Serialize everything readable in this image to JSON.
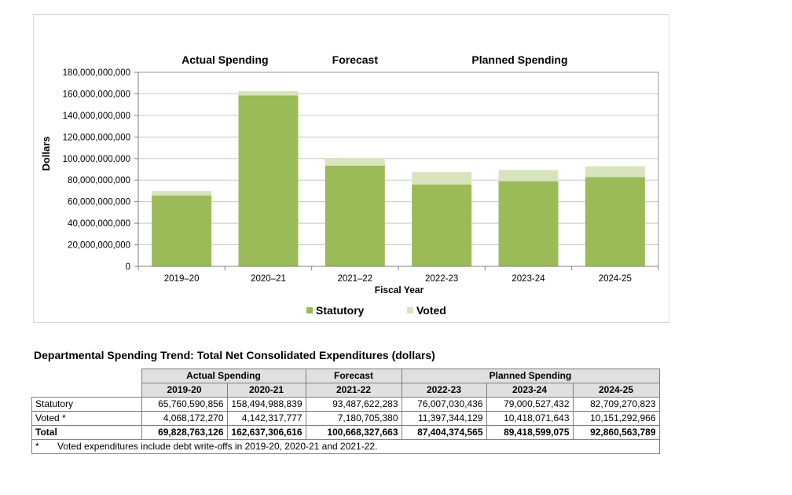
{
  "chart_data": {
    "type": "bar",
    "stacked": true,
    "categories": [
      "2019–20",
      "2020–21",
      "2021–22",
      "2022-23",
      "2023-24",
      "2024-25"
    ],
    "series": [
      {
        "name": "Statutory",
        "color": "#9bbb59",
        "values": [
          65760590856,
          158494988839,
          93487622283,
          76007030436,
          79000527432,
          82709270823
        ]
      },
      {
        "name": "Voted",
        "color": "#d7e4bd",
        "values": [
          4068172270,
          4142317777,
          7180705380,
          11397344129,
          10418071643,
          10151292966
        ]
      }
    ],
    "ylabel": "Dollars",
    "xlabel": "Fiscal Year",
    "ylim": [
      0,
      180000000000
    ],
    "yticks": [
      0,
      20000000000,
      40000000000,
      60000000000,
      80000000000,
      100000000000,
      120000000000,
      140000000000,
      160000000000,
      180000000000
    ],
    "ytick_labels": [
      "0",
      "20,000,000,000",
      "40,000,000,000",
      "60,000,000,000",
      "80,000,000,000",
      "100,000,000,000",
      "120,000,000,000",
      "140,000,000,000",
      "160,000,000,000",
      "180,000,000,000"
    ],
    "group_labels": [
      "Actual  Spending",
      "Forecast",
      "Planned Spending"
    ],
    "grid": true,
    "legend": "bottom-center"
  },
  "table": {
    "title": "Departmental Spending Trend: Total Net Consolidated Expenditures (dollars)",
    "groups": [
      "Actual Spending",
      "Forecast",
      "Planned Spending"
    ],
    "years": [
      "2019-20",
      "2020-21",
      "2021-22",
      "2022-23",
      "2023-24",
      "2024-25"
    ],
    "rows": [
      {
        "label": "Statutory",
        "values": [
          "65,760,590,856",
          "158,494,988,839",
          "93,487,622,283",
          "76,007,030,436",
          "79,000,527,432",
          "82,709,270,823"
        ]
      },
      {
        "label": "Voted *",
        "values": [
          "4,068,172,270",
          "4,142,317,777",
          "7,180,705,380",
          "11,397,344,129",
          "10,418,071,643",
          "10,151,292,966"
        ]
      },
      {
        "label": "Total",
        "values": [
          "69,828,763,126",
          "162,637,306,616",
          "100,668,327,663",
          "87,404,374,565",
          "89,418,599,075",
          "92,860,563,789"
        ]
      }
    ],
    "note_marker": "*",
    "note": "Voted expenditures include debt write-offs in 2019-20, 2020-21 and 2021-22."
  }
}
